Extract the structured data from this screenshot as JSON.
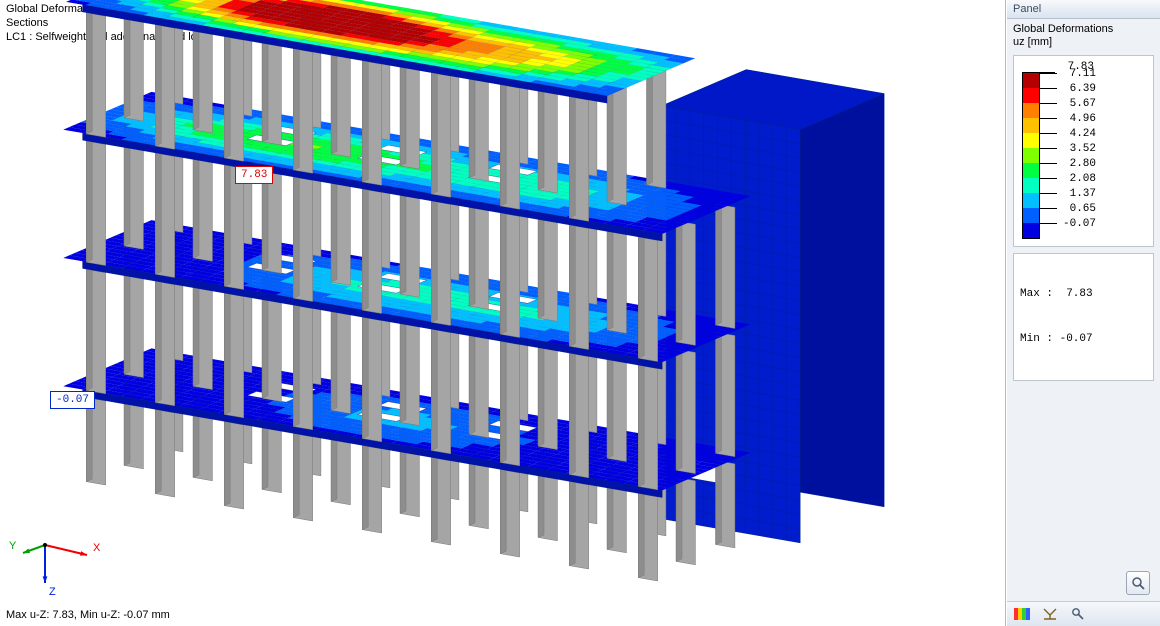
{
  "viewport": {
    "header_line1": "Global Deformations u-Z [mm]",
    "header_line2": "Sections",
    "header_line3": "LC1 : Selfweight and additional dead load",
    "footer": "Max u-Z: 7.83, Min u-Z: -0.07 mm",
    "max_callout": " 7.83",
    "min_callout": "-0.07",
    "csys": {
      "x_label": "X",
      "y_label": "Y",
      "z_label": "Z",
      "x_color": "#f00000",
      "y_color": "#00a000",
      "z_color": "#0020e0"
    }
  },
  "panel": {
    "title": "Panel",
    "heading_line1": "Global Deformations",
    "heading_line2": "uz [mm]",
    "legend": {
      "ticks": [
        "7.83",
        "7.11",
        "6.39",
        "5.67",
        "4.96",
        "4.24",
        "3.52",
        "2.80",
        "2.08",
        "1.37",
        "0.65",
        "-0.07"
      ],
      "colors": [
        "#b40000",
        "#ff0000",
        "#ff8000",
        "#ffc000",
        "#ffff00",
        "#80ff00",
        "#00ff40",
        "#00ffc0",
        "#00c0ff",
        "#0060ff",
        "#0000e0"
      ]
    },
    "stats_max": "Max :  7.83",
    "stats_min": "Min : -0.07"
  },
  "style": {
    "column_fill": "#a5a5a5",
    "column_stroke": "#7a7a7a",
    "mesh_stroke": "#002a8a",
    "slab_fill_base": "#0018c8",
    "wall_face_fill": "#00109e",
    "wall_front_fill": "#001ccc"
  }
}
